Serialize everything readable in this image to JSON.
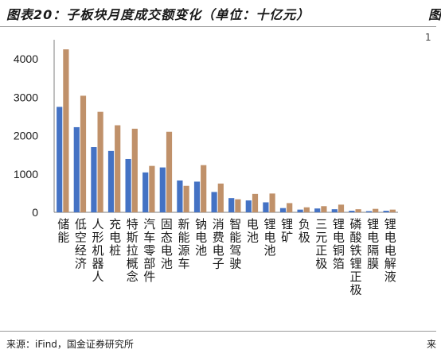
{
  "figure": {
    "title": "图表20：子板块月度成交额变化（单位：十亿元）",
    "source": "来源：iFind，国金证券研究所",
    "clipped_right_title": "图",
    "clipped_right_number": "1",
    "clipped_right_source": "来"
  },
  "colors": {
    "series1": "#4472c4",
    "series2": "#c0916a",
    "axis": "#7f7f7f"
  },
  "chart_data": {
    "type": "bar",
    "title": "子板块月度成交额变化",
    "ylabel": "",
    "xlabel": "",
    "ylim": [
      0,
      4500
    ],
    "yticks": [
      0,
      1000,
      2000,
      3000,
      4000
    ],
    "grid": false,
    "legend": "none",
    "categories": [
      "储能",
      "低空经济",
      "人形机器人",
      "充电桩",
      "特斯拉概念",
      "汽车零部件",
      "固态电池",
      "新能源车",
      "钠电池",
      "消费电子",
      "智能驾驶",
      "电池",
      "锂电池",
      "锂矿",
      "负极",
      "三元正极",
      "锂电铜箔",
      "磷酸铁锂正极",
      "锂电隔膜",
      "锂电电解液"
    ],
    "series": [
      {
        "values": [
          2750,
          2220,
          1700,
          1600,
          1390,
          1040,
          1170,
          830,
          800,
          530,
          370,
          310,
          260,
          110,
          70,
          100,
          80,
          40,
          30,
          40
        ]
      },
      {
        "values": [
          4250,
          3040,
          2620,
          2270,
          2180,
          1210,
          2100,
          690,
          1230,
          750,
          340,
          480,
          490,
          240,
          130,
          160,
          200,
          80,
          90,
          70
        ]
      }
    ]
  }
}
